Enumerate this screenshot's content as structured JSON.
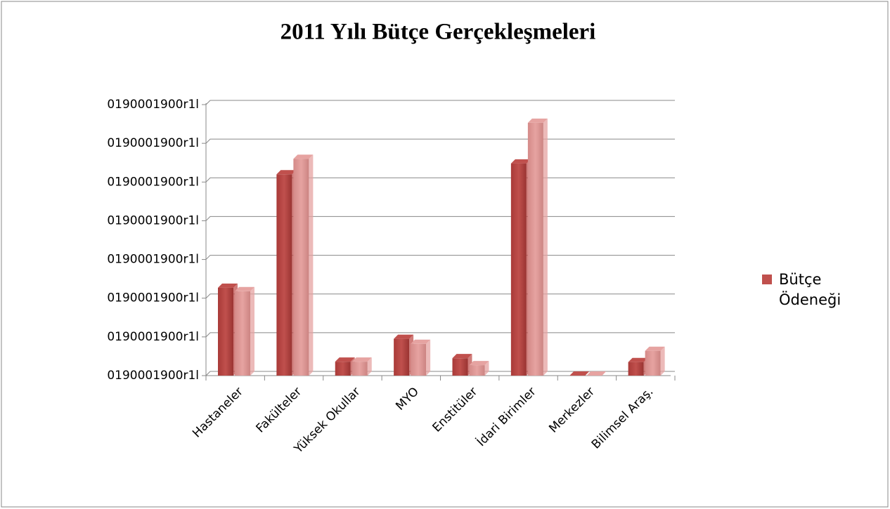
{
  "chart_data": {
    "type": "bar",
    "title": "2011 Yılı Bütçe Gerçekleşmeleri",
    "categories": [
      "Hastaneler",
      "Fakülteler",
      "Yüksek Okullar",
      "MYO",
      "Enstitüler",
      "İdari Birimler",
      "Merkezler",
      "Bilimsel Araş."
    ],
    "series": [
      {
        "name": "Bütçe Ödeneği",
        "color": "#c0504d",
        "values": [
          2.27,
          5.2,
          0.36,
          0.95,
          0.45,
          5.48,
          0,
          0.35
        ]
      },
      {
        "color": "#e6a3a1",
        "values": [
          2.18,
          5.6,
          0.36,
          0.82,
          0.27,
          6.53,
          0,
          0.64
        ]
      }
    ],
    "ylim": [
      0,
      7
    ],
    "yticks": [
      {
        "value": 0,
        "label": "0190001900r1l"
      },
      {
        "value": 1,
        "label": "0190001900r1l"
      },
      {
        "value": 2,
        "label": "0190001900r1l"
      },
      {
        "value": 3,
        "label": "0190001900r1l"
      },
      {
        "value": 4,
        "label": "0190001900r1l"
      },
      {
        "value": 5,
        "label": "0190001900r1l"
      },
      {
        "value": 6,
        "label": "0190001900r1l"
      },
      {
        "value": 7,
        "label": "0190001900r1l"
      }
    ],
    "grid": true,
    "legend": "right"
  }
}
